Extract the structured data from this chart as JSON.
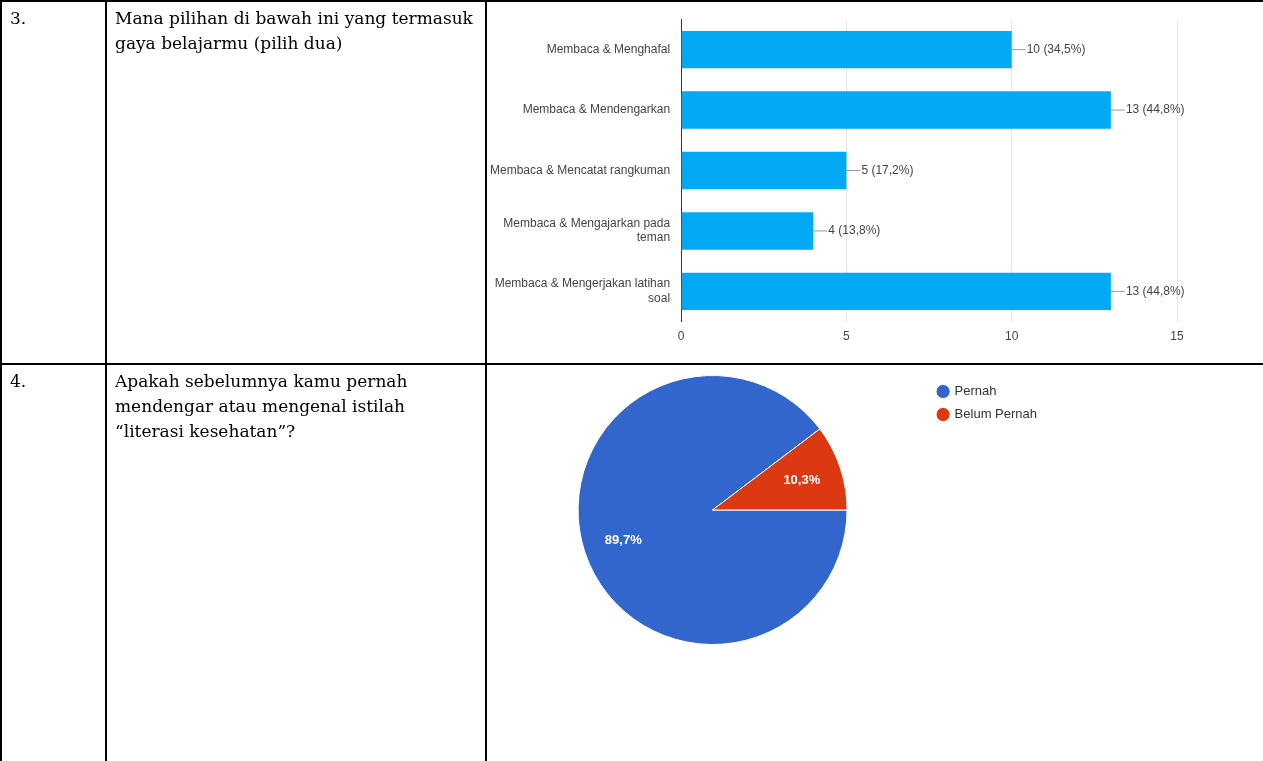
{
  "chart_data": [
    {
      "type": "bar",
      "orientation": "horizontal",
      "title": "Mana pilihan di bawah ini yang termasuk gaya belajarmu (pilih dua)",
      "annotations": [
        "3."
      ],
      "categories": [
        "Membaca & Menghafal",
        "Membaca & Mendengarkan",
        "Membaca & Mencatat rangkuman",
        "Membaca & Mengajarkan pada teman",
        "Membaca & Mengerjakan latihan soal"
      ],
      "values": [
        10,
        13,
        5,
        4,
        13
      ],
      "value_labels": [
        "10 (34,5%)",
        "13 (44,8%)",
        "5 (17,2%)",
        "4 (13,8%)",
        "13 (44,8%)"
      ],
      "color": "#03a9f4",
      "xlim": [
        0,
        15
      ],
      "xticks": [
        0,
        5,
        10,
        15
      ],
      "grid": "x",
      "legend": false
    },
    {
      "type": "pie",
      "title": "Apakah sebelumnya kamu pernah mendengar atau mengenal istilah “literasi kesehatan”?",
      "annotations": [
        "4."
      ],
      "categories": [
        "Pernah",
        "Belum Pernah"
      ],
      "values": [
        89.7,
        10.3
      ],
      "colors": [
        "#3366cc",
        "#dc3912"
      ],
      "value_labels": [
        "89,7%",
        "10,3%"
      ],
      "legend": "top right"
    }
  ]
}
